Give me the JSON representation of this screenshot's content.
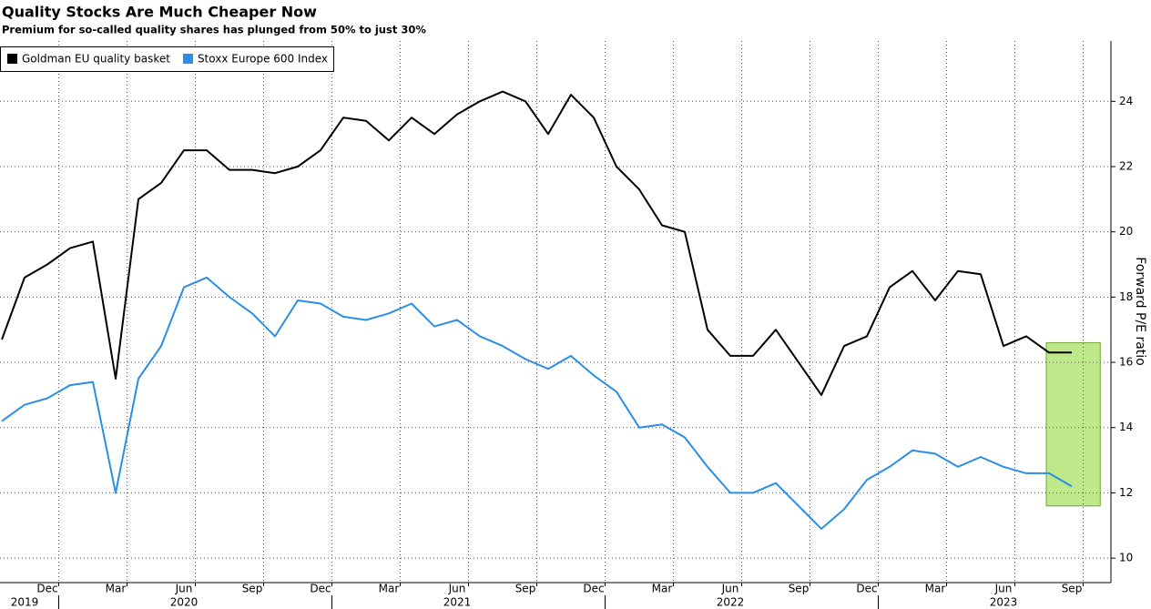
{
  "chart_data": {
    "type": "line",
    "title": "Quality Stocks Are Much Cheaper Now",
    "subtitle": "Premium for so-called quality shares has plunged from 50% to just 30%",
    "y_label": "Forward P/E ratio",
    "x": [
      "2019-10",
      "2019-11",
      "2019-12",
      "2020-01",
      "2020-02",
      "2020-03",
      "2020-04",
      "2020-05",
      "2020-06",
      "2020-07",
      "2020-08",
      "2020-09",
      "2020-10",
      "2020-11",
      "2020-12",
      "2021-01",
      "2021-02",
      "2021-03",
      "2021-04",
      "2021-05",
      "2021-06",
      "2021-07",
      "2021-08",
      "2021-09",
      "2021-10",
      "2021-11",
      "2021-12",
      "2022-01",
      "2022-02",
      "2022-03",
      "2022-04",
      "2022-05",
      "2022-06",
      "2022-07",
      "2022-08",
      "2022-09",
      "2022-10",
      "2022-11",
      "2022-12",
      "2023-01",
      "2023-02",
      "2023-03",
      "2023-04",
      "2023-05",
      "2023-06",
      "2023-07",
      "2023-08",
      "2023-09"
    ],
    "series": [
      {
        "name": "Goldman EU quality basket",
        "color": "#000000",
        "values": [
          16.7,
          18.6,
          19.0,
          19.5,
          19.7,
          15.5,
          21.0,
          21.5,
          22.5,
          22.5,
          21.9,
          21.9,
          21.8,
          22.0,
          22.5,
          23.5,
          23.4,
          22.8,
          23.5,
          23.0,
          23.6,
          24.0,
          24.3,
          24.0,
          23.0,
          24.2,
          23.5,
          22.0,
          21.3,
          20.2,
          20.0,
          17.0,
          16.2,
          16.2,
          17.0,
          16.0,
          15.0,
          16.5,
          16.8,
          18.3,
          18.8,
          17.9,
          18.8,
          18.7,
          16.5,
          16.8,
          16.3,
          16.3
        ]
      },
      {
        "name": "Stoxx Europe 600 Index",
        "color": "#2b8ee6",
        "values": [
          14.2,
          14.7,
          14.9,
          15.3,
          15.4,
          12.0,
          15.5,
          16.5,
          18.3,
          18.6,
          18.0,
          17.5,
          16.8,
          17.9,
          17.8,
          17.4,
          17.3,
          17.5,
          17.8,
          17.1,
          17.3,
          16.8,
          16.5,
          16.1,
          15.8,
          16.2,
          15.6,
          15.1,
          14.0,
          14.1,
          13.7,
          12.8,
          12.0,
          12.0,
          12.3,
          11.6,
          10.9,
          11.5,
          12.4,
          12.8,
          13.3,
          13.2,
          12.8,
          13.1,
          12.8,
          12.6,
          12.6,
          12.2
        ]
      }
    ],
    "xticks": [
      {
        "value": "2019-12",
        "label": "Dec"
      },
      {
        "value": "2020-03",
        "label": "Mar"
      },
      {
        "value": "2020-06",
        "label": "Jun"
      },
      {
        "value": "2020-09",
        "label": "Sep"
      },
      {
        "value": "2020-12",
        "label": "Dec"
      },
      {
        "value": "2021-03",
        "label": "Mar"
      },
      {
        "value": "2021-06",
        "label": "Jun"
      },
      {
        "value": "2021-09",
        "label": "Sep"
      },
      {
        "value": "2021-12",
        "label": "Dec"
      },
      {
        "value": "2022-03",
        "label": "Mar"
      },
      {
        "value": "2022-06",
        "label": "Jun"
      },
      {
        "value": "2022-09",
        "label": "Sep"
      },
      {
        "value": "2022-12",
        "label": "Dec"
      },
      {
        "value": "2023-03",
        "label": "Mar"
      },
      {
        "value": "2023-06",
        "label": "Jun"
      },
      {
        "value": "2023-09",
        "label": "Sep"
      }
    ],
    "year_labels": [
      {
        "value": "2019-11",
        "label": "2019"
      },
      {
        "value": "2020-06",
        "label": "2020"
      },
      {
        "value": "2021-06",
        "label": "2021"
      },
      {
        "value": "2022-06",
        "label": "2022"
      },
      {
        "value": "2023-06",
        "label": "2023"
      }
    ],
    "ylim": [
      9.25,
      25.85
    ],
    "yticks": [
      10,
      12,
      14,
      16,
      18,
      20,
      22,
      24
    ],
    "grid": true,
    "legend": "top-left",
    "highlight": {
      "x": [
        "2023-08",
        "2023-09"
      ],
      "y": [
        11.6,
        16.6
      ],
      "color": "#a8e063"
    }
  }
}
